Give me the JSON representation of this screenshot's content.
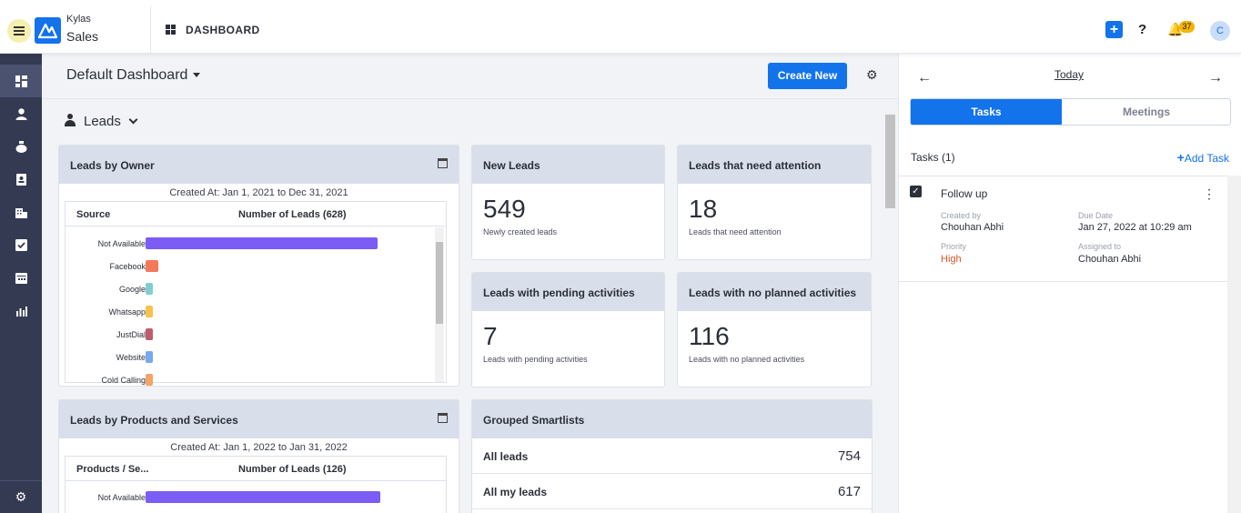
{
  "app": {
    "brand": "Kylas",
    "module": "Sales",
    "page": "DASHBOARD"
  },
  "header": {
    "notification_count": "37",
    "avatar_initial": "C"
  },
  "dashboard": {
    "name": "Default Dashboard",
    "create_label": "Create New",
    "section": "Leads"
  },
  "cards": {
    "leads_by_owner": {
      "title": "Leads by Owner",
      "created": "Created At: Jan 1, 2021 to Dec 31, 2021",
      "col1": "Source",
      "col2": "Number of Leads (628)",
      "rows": [
        {
          "label": "Not Available",
          "value": 0.85,
          "color": "#7b5cf5"
        },
        {
          "label": "Facebook",
          "value": 0.045,
          "color": "#f4785a"
        },
        {
          "label": "Google",
          "value": 0.025,
          "color": "#7fcfd0"
        },
        {
          "label": "Whatsapp",
          "value": 0.025,
          "color": "#f6c34a"
        },
        {
          "label": "JustDial",
          "value": 0.025,
          "color": "#c05b6e"
        },
        {
          "label": "Website",
          "value": 0.025,
          "color": "#78a9ee"
        },
        {
          "label": "Cold Calling",
          "value": 0.025,
          "color": "#f4a466"
        }
      ]
    },
    "new_leads": {
      "title": "New Leads",
      "value": "549",
      "sub": "Newly created leads"
    },
    "attention": {
      "title": "Leads that need attention",
      "value": "18",
      "sub": "Leads that need attention"
    },
    "pending": {
      "title": "Leads with pending activities",
      "value": "7",
      "sub": "Leads with pending activities"
    },
    "no_planned": {
      "title": "Leads with no planned activities",
      "value": "116",
      "sub": "Leads with no planned activities"
    },
    "leads_by_products": {
      "title": "Leads by Products and Services",
      "created": "Created At: Jan 1, 2022 to Jan 31, 2022",
      "col1": "Products / Se...",
      "col2": "Number of Leads (126)",
      "rows": [
        {
          "label": "Not Available",
          "value": 0.86,
          "color": "#7b5cf5"
        }
      ]
    },
    "smartlists": {
      "title": "Grouped Smartlists",
      "rows": [
        {
          "name": "All leads",
          "count": "754"
        },
        {
          "name": "All my leads",
          "count": "617"
        }
      ]
    }
  },
  "panel": {
    "date_label": "Today",
    "tab_tasks": "Tasks",
    "tab_meetings": "Meetings",
    "tasks_count": "Tasks (1)",
    "add_task": "Add Task",
    "task": {
      "title": "Follow up",
      "created_by_label": "Created by",
      "created_by": "Chouhan Abhi",
      "due_label": "Due Date",
      "due": "Jan 27, 2022 at 10:29 am",
      "priority_label": "Priority",
      "priority": "High",
      "assigned_label": "Assigned to",
      "assigned": "Chouhan Abhi"
    }
  }
}
